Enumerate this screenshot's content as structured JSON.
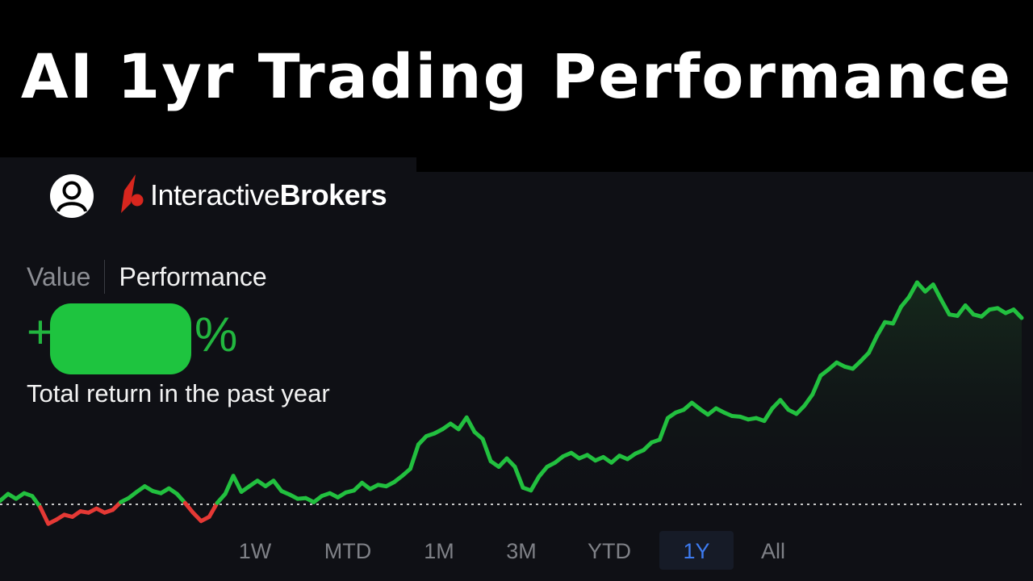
{
  "title": "AI 1yr Trading Performance",
  "app": {
    "brand_regular": "Interactive",
    "brand_bold": "Brokers",
    "tabs": [
      {
        "label": "Value",
        "active": false
      },
      {
        "label": "Performance",
        "active": true
      }
    ],
    "return_sign": "+",
    "return_unit": "%",
    "return_caption": "Total return in the past year",
    "ranges": [
      "1W",
      "MTD",
      "1M",
      "3M",
      "YTD",
      "1Y",
      "All"
    ],
    "active_range": "1Y"
  },
  "colors": {
    "positive": "#22c03f",
    "negative": "#e53935",
    "accent": "#3d7bf0",
    "background": "#0f1015"
  },
  "chart_data": {
    "type": "line",
    "baseline": 0,
    "grid": false,
    "x": [
      0,
      1,
      2,
      3,
      4,
      5,
      6,
      7,
      8,
      9,
      10,
      11,
      12,
      13,
      14,
      15,
      16,
      17,
      18,
      19,
      20,
      21,
      22,
      23,
      24,
      25,
      26,
      27,
      28,
      29,
      30,
      31,
      32,
      33,
      34,
      35,
      36,
      37,
      38,
      39,
      40,
      41,
      42,
      43,
      44,
      45,
      46,
      47,
      48,
      49,
      50,
      51,
      52,
      53,
      54,
      55,
      56,
      57,
      58,
      59,
      60,
      61,
      62,
      63,
      64,
      65,
      66,
      67,
      68,
      69,
      70,
      71,
      72,
      73,
      74,
      75,
      76,
      77,
      78,
      79,
      80,
      81,
      82,
      83,
      84,
      85,
      86,
      87,
      88,
      89,
      90,
      91,
      92,
      93,
      94,
      95,
      96,
      97,
      98,
      99,
      100,
      101,
      102,
      103,
      104,
      105,
      106,
      107,
      108,
      109,
      110,
      111,
      112,
      113,
      114,
      115,
      116,
      117,
      118,
      119,
      120,
      121,
      122,
      123,
      124,
      125,
      126,
      127
    ],
    "y": [
      0.5,
      1.5,
      0.8,
      1.6,
      1.2,
      -0.4,
      -2.8,
      -2.2,
      -1.5,
      -1.8,
      -1.0,
      -1.2,
      -0.6,
      -1.2,
      -0.8,
      0.3,
      0.9,
      1.8,
      2.6,
      1.9,
      1.6,
      2.3,
      1.5,
      0.2,
      -1.2,
      -2.4,
      -1.8,
      0.2,
      1.5,
      4.1,
      1.8,
      2.6,
      3.4,
      2.6,
      3.4,
      1.9,
      1.4,
      0.8,
      0.9,
      0.3,
      1.2,
      1.6,
      1.0,
      1.7,
      2.0,
      3.1,
      2.2,
      2.8,
      2.6,
      3.2,
      4.1,
      5.1,
      8.6,
      9.8,
      10.2,
      10.8,
      11.6,
      10.8,
      12.5,
      10.4,
      9.4,
      6.2,
      5.4,
      6.6,
      5.4,
      2.4,
      2.0,
      4.0,
      5.4,
      6.0,
      6.9,
      7.4,
      6.6,
      7.1,
      6.3,
      6.8,
      6.0,
      7.0,
      6.5,
      7.3,
      7.8,
      8.9,
      9.3,
      12.4,
      13.2,
      13.6,
      14.6,
      13.7,
      12.9,
      13.8,
      13.2,
      12.7,
      12.6,
      12.2,
      12.4,
      12.0,
      13.8,
      15.0,
      13.6,
      13.0,
      14.2,
      15.8,
      18.5,
      19.4,
      20.4,
      19.8,
      19.5,
      20.6,
      21.8,
      24.2,
      26.2,
      26.0,
      28.4,
      29.8,
      31.9,
      30.6,
      31.6,
      29.4,
      27.3,
      27.1,
      28.6,
      27.3,
      27.0,
      28.0,
      28.2,
      27.5,
      28.0,
      26.8
    ]
  }
}
